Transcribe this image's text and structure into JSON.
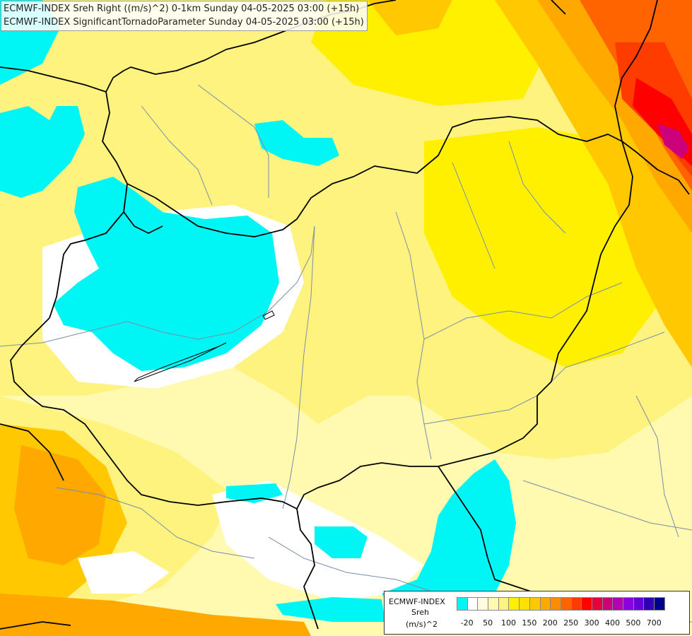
{
  "title": {
    "line1": "ECMWF-INDEX Sreh Right ((m/s)^2) 0-1km Sunday 04-05-2025 03:00 (+15h)",
    "line2": "ECMWF-INDEX SignificantTornadoParameter Sunday 04-05-2025 03:00 (+15h)"
  },
  "legend": {
    "name": "ECMWF-INDEX",
    "variable": "Sreh",
    "unit": "(m/s)^2",
    "colors": [
      "#00f5f5",
      "#ffffff",
      "#fffbe0",
      "#fffab0",
      "#fff380",
      "#fff000",
      "#ffe000",
      "#ffc800",
      "#ffa800",
      "#ff8c00",
      "#ff6400",
      "#ff3c00",
      "#ff0000",
      "#e6003c",
      "#cc0078",
      "#b400b4",
      "#8c00dc",
      "#6400dc",
      "#3200b4",
      "#00008c"
    ],
    "ticks": [
      "-20",
      "50",
      "100",
      "150",
      "200",
      "250",
      "300",
      "400",
      "500",
      "700"
    ]
  },
  "map": {
    "background": "#fffab0",
    "border_color": "#000000",
    "river_color": "#7a8ea8"
  }
}
